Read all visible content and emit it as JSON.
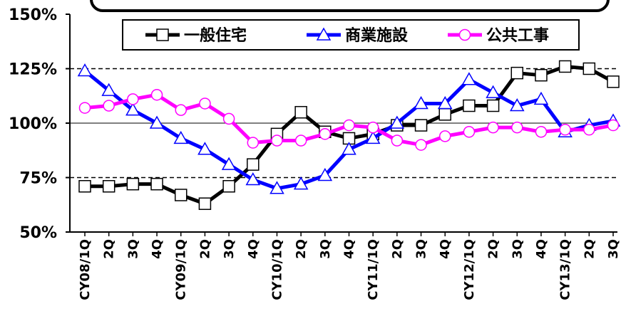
{
  "chart_data": {
    "type": "line",
    "title": "",
    "xlabel": "",
    "ylabel": "",
    "ylim": [
      50,
      150
    ],
    "yticks": [
      50,
      75,
      100,
      125,
      150
    ],
    "ytick_labels": [
      "50%",
      "75%",
      "100%",
      "125%",
      "150%"
    ],
    "categories": [
      "CY08/1Q",
      "2Q",
      "3Q",
      "4Q",
      "CY09/1Q",
      "2Q",
      "3Q",
      "4Q",
      "CY10/1Q",
      "2Q",
      "3Q",
      "4Q",
      "CY11/1Q",
      "2Q",
      "3Q",
      "4Q",
      "CY12/1Q",
      "2Q",
      "3Q",
      "4Q",
      "CY13/1Q",
      "2Q",
      "3Q"
    ],
    "grid": "dashed at 75% and 125%, solid at 100%",
    "legend_position": "top",
    "series": [
      {
        "name": "一般住宅",
        "color": "#000000",
        "marker": "square",
        "values": [
          71,
          71,
          72,
          72,
          67,
          63,
          71,
          81,
          95,
          105,
          96,
          93,
          95,
          99,
          99,
          104,
          108,
          108,
          123,
          122,
          126,
          125,
          119
        ]
      },
      {
        "name": "商業施設",
        "color": "#0000ff",
        "marker": "triangle",
        "values": [
          124,
          115,
          106,
          100,
          93,
          88,
          81,
          74,
          70,
          72,
          76,
          88,
          93,
          100,
          109,
          109,
          120,
          114,
          108,
          111,
          96,
          99,
          101
        ]
      },
      {
        "name": "公共工事",
        "color": "#ff00ff",
        "marker": "circle",
        "values": [
          107,
          108,
          111,
          113,
          106,
          109,
          102,
          91,
          92,
          92,
          95,
          99,
          98,
          92,
          90,
          94,
          96,
          98,
          98,
          96,
          97,
          97,
          99
        ]
      }
    ]
  }
}
